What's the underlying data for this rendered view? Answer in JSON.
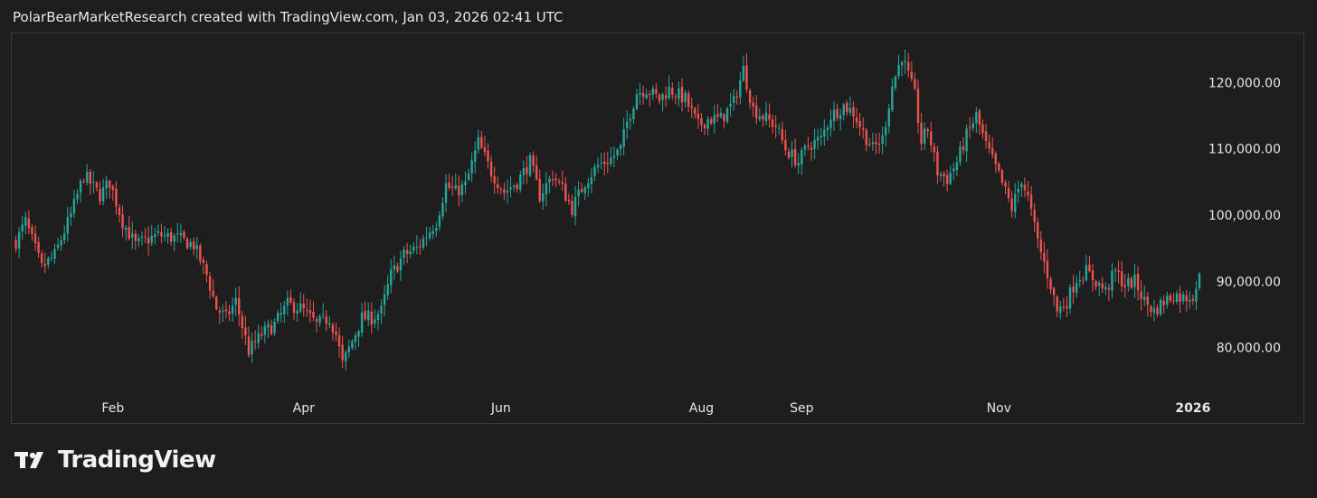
{
  "caption": "PolarBearMarketResearch created with TradingView.com, Jan 03, 2026 02:41 UTC",
  "brand": {
    "name": "TradingView"
  },
  "colors": {
    "up": "#26a69a",
    "down": "#ef5350",
    "background": "#1e1e1f",
    "text": "#e6e6e6"
  },
  "chart_data": {
    "type": "candlestick",
    "title": "",
    "xlabel": "",
    "ylabel": "",
    "ylim": [
      73000,
      127000
    ],
    "grid": false,
    "y_ticks": [
      {
        "value": 120000,
        "label": "120,000.00"
      },
      {
        "value": 110000,
        "label": "110,000.00"
      },
      {
        "value": 100000,
        "label": "100,000.00"
      },
      {
        "value": 90000,
        "label": "90,000.00"
      },
      {
        "value": 80000,
        "label": "80,000.00"
      }
    ],
    "x_ticks": [
      {
        "label": "Feb",
        "day": 30,
        "bold": false
      },
      {
        "label": "Apr",
        "day": 89,
        "bold": false
      },
      {
        "label": "Jun",
        "day": 150,
        "bold": false
      },
      {
        "label": "Aug",
        "day": 212,
        "bold": false
      },
      {
        "label": "Sep",
        "day": 243,
        "bold": false
      },
      {
        "label": "Nov",
        "day": 304,
        "bold": false
      },
      {
        "label": "2026",
        "day": 364,
        "bold": true
      }
    ],
    "x_range_days": [
      -1,
      366
    ],
    "anchors": [
      [
        0,
        96000
      ],
      [
        3,
        99000
      ],
      [
        8,
        92000
      ],
      [
        12,
        94000
      ],
      [
        17,
        100000
      ],
      [
        21,
        106000
      ],
      [
        26,
        103000
      ],
      [
        29,
        105000
      ],
      [
        33,
        99000
      ],
      [
        37,
        95500
      ],
      [
        44,
        97000
      ],
      [
        50,
        96500
      ],
      [
        55,
        95500
      ],
      [
        59,
        91000
      ],
      [
        62,
        86000
      ],
      [
        65,
        84500
      ],
      [
        68,
        87000
      ],
      [
        72,
        79500
      ],
      [
        76,
        82000
      ],
      [
        80,
        83500
      ],
      [
        84,
        86500
      ],
      [
        88,
        86000
      ],
      [
        93,
        83500
      ],
      [
        97,
        84500
      ],
      [
        99,
        82000
      ],
      [
        101,
        77500
      ],
      [
        104,
        81000
      ],
      [
        107,
        84500
      ],
      [
        110,
        84500
      ],
      [
        113,
        85500
      ],
      [
        116,
        91000
      ],
      [
        120,
        94000
      ],
      [
        124,
        95000
      ],
      [
        127,
        97000
      ],
      [
        130,
        99000
      ],
      [
        133,
        104500
      ],
      [
        136,
        103500
      ],
      [
        139,
        104500
      ],
      [
        143,
        111000
      ],
      [
        147,
        106500
      ],
      [
        151,
        103500
      ],
      [
        155,
        105000
      ],
      [
        159,
        108000
      ],
      [
        162,
        103000
      ],
      [
        166,
        106000
      ],
      [
        169,
        104000
      ],
      [
        172,
        101000
      ],
      [
        176,
        105000
      ],
      [
        180,
        107500
      ],
      [
        184,
        108500
      ],
      [
        187,
        110000
      ],
      [
        189,
        114000
      ],
      [
        192,
        118500
      ],
      [
        195,
        119000
      ],
      [
        199,
        117500
      ],
      [
        202,
        119000
      ],
      [
        207,
        117500
      ],
      [
        211,
        113500
      ],
      [
        214,
        114500
      ],
      [
        218,
        114500
      ],
      [
        222,
        117000
      ],
      [
        225,
        122000
      ],
      [
        228,
        116000
      ],
      [
        232,
        114500
      ],
      [
        235,
        113500
      ],
      [
        238,
        110000
      ],
      [
        242,
        108000
      ],
      [
        245,
        110500
      ],
      [
        249,
        111500
      ],
      [
        252,
        115000
      ],
      [
        256,
        116500
      ],
      [
        259,
        115500
      ],
      [
        262,
        112500
      ],
      [
        265,
        110000
      ],
      [
        268,
        111500
      ],
      [
        271,
        119500
      ],
      [
        274,
        124000
      ],
      [
        276,
        121000
      ],
      [
        278,
        118000
      ],
      [
        280,
        111000
      ],
      [
        282,
        113000
      ],
      [
        285,
        106500
      ],
      [
        288,
        105500
      ],
      [
        291,
        108000
      ],
      [
        294,
        112000
      ],
      [
        297,
        115000
      ],
      [
        300,
        110500
      ],
      [
        304,
        106000
      ],
      [
        306,
        103500
      ],
      [
        308,
        101000
      ],
      [
        311,
        105500
      ],
      [
        313,
        102500
      ],
      [
        316,
        96000
      ],
      [
        320,
        89500
      ],
      [
        322,
        85500
      ],
      [
        325,
        87000
      ],
      [
        328,
        90500
      ],
      [
        331,
        91500
      ],
      [
        334,
        90000
      ],
      [
        337,
        88500
      ],
      [
        340,
        91500
      ],
      [
        343,
        89500
      ],
      [
        346,
        90000
      ],
      [
        349,
        87000
      ],
      [
        352,
        85500
      ],
      [
        355,
        87000
      ],
      [
        358,
        88000
      ],
      [
        361,
        87500
      ],
      [
        364,
        88000
      ],
      [
        366,
        90500
      ]
    ]
  }
}
